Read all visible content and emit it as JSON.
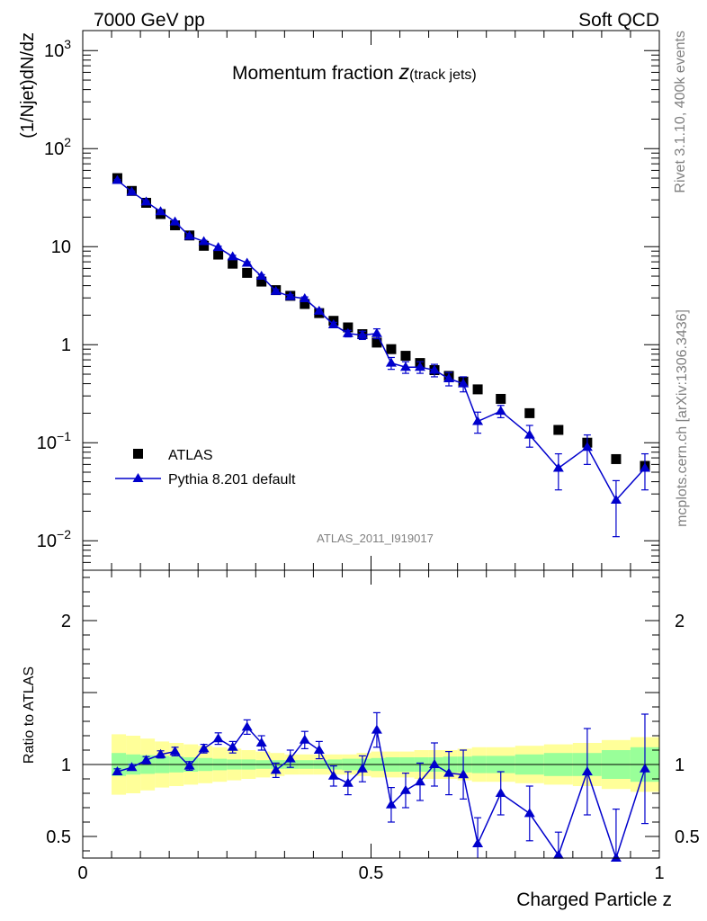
{
  "header": {
    "left": "7000 GeV pp",
    "right": "Soft QCD"
  },
  "side": {
    "version": "Rivet 3.1.10,  400k events",
    "site": "mcplots.cern.ch [arXiv:1306.3436]"
  },
  "plot_title": {
    "main": "Momentum fraction ",
    "z": "z",
    "sub": "(track jets)"
  },
  "analysis_tag": "ATLAS_2011_I919017",
  "chart_data": [
    {
      "type": "scatter",
      "panel": "main",
      "ylabel": "(1/Njet)dN/dz",
      "yscale": "log",
      "ylim": [
        0.005,
        1600
      ],
      "xlim": [
        0,
        1
      ],
      "yticks": [
        {
          "value": 0.01,
          "base": "10",
          "exp": "−2"
        },
        {
          "value": 0.1,
          "base": "10",
          "exp": "−1"
        },
        {
          "value": 1,
          "base": "1",
          "exp": ""
        },
        {
          "value": 10,
          "base": "10",
          "exp": ""
        },
        {
          "value": 100,
          "base": "10",
          "exp": "2"
        },
        {
          "value": 1000,
          "base": "10",
          "exp": "3"
        }
      ],
      "legend": {
        "position": "bottom-left",
        "entries": [
          "ATLAS",
          "Pythia 8.201 default"
        ]
      },
      "series": [
        {
          "name": "ATLAS",
          "marker": "square",
          "color": "#000000",
          "x": [
            0.06,
            0.085,
            0.11,
            0.135,
            0.16,
            0.185,
            0.21,
            0.235,
            0.26,
            0.285,
            0.31,
            0.335,
            0.36,
            0.385,
            0.41,
            0.435,
            0.46,
            0.485,
            0.51,
            0.535,
            0.56,
            0.585,
            0.61,
            0.635,
            0.66,
            0.685,
            0.725,
            0.775,
            0.825,
            0.875,
            0.925,
            0.975
          ],
          "y": [
            50,
            37,
            28,
            21.5,
            16.5,
            13,
            10.2,
            8.3,
            6.7,
            5.4,
            4.4,
            3.6,
            3.15,
            2.6,
            2.1,
            1.75,
            1.5,
            1.28,
            1.05,
            0.9,
            0.77,
            0.65,
            0.55,
            0.48,
            0.42,
            0.35,
            0.28,
            0.2,
            0.135,
            0.1,
            0.068,
            0.058
          ]
        },
        {
          "name": "Pythia 8.201 default",
          "marker": "triangle",
          "color": "#0000cc",
          "x": [
            0.06,
            0.085,
            0.11,
            0.135,
            0.16,
            0.185,
            0.21,
            0.235,
            0.26,
            0.285,
            0.31,
            0.335,
            0.36,
            0.385,
            0.41,
            0.435,
            0.46,
            0.485,
            0.51,
            0.535,
            0.56,
            0.585,
            0.61,
            0.635,
            0.66,
            0.685,
            0.725,
            0.775,
            0.825,
            0.875,
            0.925,
            0.975
          ],
          "y": [
            47.5,
            36.2,
            28.7,
            22.8,
            17.9,
            12.8,
            11.3,
            9.8,
            7.9,
            6.8,
            5,
            3.5,
            3.1,
            2.95,
            2.2,
            1.6,
            1.3,
            1.25,
            1.3,
            0.65,
            0.59,
            0.59,
            0.55,
            0.45,
            0.4,
            0.165,
            0.21,
            0.12,
            0.055,
            0.09,
            0.026,
            0.055
          ],
          "yerr": [
            1,
            0.8,
            0.6,
            0.5,
            0.4,
            0.35,
            0.3,
            0.3,
            0.25,
            0.2,
            0.18,
            0.15,
            0.13,
            0.12,
            0.1,
            0.09,
            0.1,
            0.12,
            0.15,
            0.09,
            0.08,
            0.08,
            0.08,
            0.07,
            0.07,
            0.04,
            0.03,
            0.03,
            0.022,
            0.03,
            0.015,
            0.022
          ]
        }
      ]
    },
    {
      "type": "scatter",
      "panel": "ratio",
      "ylabel": "Ratio to ATLAS",
      "xlabel": "Charged Particle z",
      "ylim": [
        0.35,
        2.35
      ],
      "xlim": [
        0,
        1
      ],
      "xticks": [
        {
          "value": 0,
          "label": "0"
        },
        {
          "value": 0.5,
          "label": "0.5"
        },
        {
          "value": 1,
          "label": "1"
        }
      ],
      "yticks": [
        {
          "value": 0.5,
          "label": "0.5"
        },
        {
          "value": 1,
          "label": "1"
        },
        {
          "value": 2,
          "label": "2"
        }
      ],
      "bands": {
        "edges": [
          0.05,
          0.075,
          0.1,
          0.125,
          0.15,
          0.175,
          0.2,
          0.225,
          0.25,
          0.275,
          0.3,
          0.325,
          0.35,
          0.375,
          0.4,
          0.425,
          0.45,
          0.475,
          0.5,
          0.525,
          0.55,
          0.575,
          0.6,
          0.625,
          0.65,
          0.675,
          0.7,
          0.75,
          0.8,
          0.85,
          0.9,
          0.95,
          1.0
        ],
        "yellow_half": [
          0.21,
          0.2,
          0.18,
          0.16,
          0.15,
          0.14,
          0.13,
          0.12,
          0.11,
          0.1,
          0.09,
          0.08,
          0.07,
          0.07,
          0.07,
          0.07,
          0.07,
          0.08,
          0.09,
          0.09,
          0.09,
          0.1,
          0.1,
          0.1,
          0.11,
          0.12,
          0.12,
          0.13,
          0.14,
          0.15,
          0.17,
          0.19
        ],
        "green_half": [
          0.08,
          0.07,
          0.065,
          0.06,
          0.055,
          0.05,
          0.045,
          0.04,
          0.035,
          0.035,
          0.03,
          0.03,
          0.03,
          0.03,
          0.03,
          0.035,
          0.04,
          0.04,
          0.045,
          0.05,
          0.05,
          0.05,
          0.05,
          0.055,
          0.055,
          0.06,
          0.06,
          0.07,
          0.08,
          0.08,
          0.1,
          0.12
        ],
        "yellow_color": "#ffff99",
        "green_color": "#99ff99"
      },
      "series": [
        {
          "name": "Pythia 8.201 default",
          "marker": "triangle",
          "color": "#0000cc",
          "x": [
            0.06,
            0.085,
            0.11,
            0.135,
            0.16,
            0.185,
            0.21,
            0.235,
            0.26,
            0.285,
            0.31,
            0.335,
            0.36,
            0.385,
            0.41,
            0.435,
            0.46,
            0.485,
            0.51,
            0.535,
            0.56,
            0.585,
            0.61,
            0.635,
            0.66,
            0.685,
            0.725,
            0.775,
            0.825,
            0.875,
            0.925,
            0.975
          ],
          "y": [
            0.95,
            0.98,
            1.03,
            1.07,
            1.09,
            0.99,
            1.11,
            1.18,
            1.12,
            1.26,
            1.15,
            0.96,
            1.04,
            1.17,
            1.1,
            0.92,
            0.87,
            0.97,
            1.24,
            0.72,
            0.82,
            0.88,
            1.0,
            0.94,
            0.93,
            0.45,
            0.8,
            0.66,
            0.37,
            0.95,
            0.34,
            0.97
          ],
          "yerr": [
            0.02,
            0.02,
            0.025,
            0.025,
            0.03,
            0.03,
            0.03,
            0.04,
            0.04,
            0.05,
            0.05,
            0.05,
            0.06,
            0.06,
            0.06,
            0.07,
            0.08,
            0.09,
            0.12,
            0.12,
            0.12,
            0.13,
            0.15,
            0.15,
            0.17,
            0.18,
            0.15,
            0.19,
            0.16,
            0.3,
            0.35,
            0.38
          ]
        }
      ]
    }
  ]
}
